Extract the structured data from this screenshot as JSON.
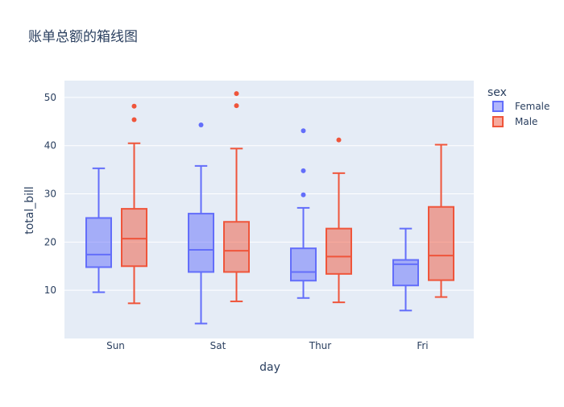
{
  "chart_data": {
    "type": "box",
    "title": "账单总额的箱线图",
    "xlabel": "day",
    "ylabel": "total_bill",
    "categories": [
      "Sun",
      "Sat",
      "Thur",
      "Fri"
    ],
    "yticks": [
      10,
      20,
      30,
      40,
      50
    ],
    "ylim": [
      0,
      53.5
    ],
    "grid": true,
    "legend": {
      "title": "sex",
      "placement": "right"
    },
    "series": [
      {
        "name": "Female",
        "color": "#636efa",
        "boxes": [
          {
            "category": "Sun",
            "min": 9.6,
            "q1": 14.8,
            "median": 17.4,
            "q3": 25.0,
            "max": 35.3,
            "outliers": []
          },
          {
            "category": "Sat",
            "min": 3.1,
            "q1": 13.8,
            "median": 18.4,
            "q3": 25.9,
            "max": 35.8,
            "outliers": [
              44.3
            ]
          },
          {
            "category": "Thur",
            "min": 8.4,
            "q1": 12.0,
            "median": 13.8,
            "q3": 18.7,
            "max": 27.1,
            "outliers": [
              29.8,
              34.8,
              43.1
            ]
          },
          {
            "category": "Fri",
            "min": 5.8,
            "q1": 11.0,
            "median": 15.4,
            "q3": 16.3,
            "max": 22.8,
            "outliers": []
          }
        ]
      },
      {
        "name": "Male",
        "color": "#ef553b",
        "boxes": [
          {
            "category": "Sun",
            "min": 7.3,
            "q1": 15.0,
            "median": 20.7,
            "q3": 26.9,
            "max": 40.5,
            "outliers": [
              45.4,
              48.2
            ]
          },
          {
            "category": "Sat",
            "min": 7.7,
            "q1": 13.8,
            "median": 18.2,
            "q3": 24.2,
            "max": 39.4,
            "outliers": [
              48.3,
              50.8
            ]
          },
          {
            "category": "Thur",
            "min": 7.5,
            "q1": 13.4,
            "median": 17.0,
            "q3": 22.8,
            "max": 34.3,
            "outliers": [
              41.2
            ]
          },
          {
            "category": "Fri",
            "min": 8.6,
            "q1": 12.1,
            "median": 17.2,
            "q3": 27.3,
            "max": 40.2,
            "outliers": []
          }
        ]
      }
    ]
  }
}
